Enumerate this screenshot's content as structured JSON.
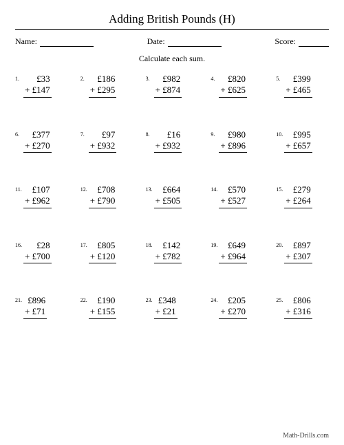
{
  "title": "Adding British Pounds (H)",
  "header": {
    "name_label": "Name:",
    "date_label": "Date:",
    "score_label": "Score:"
  },
  "instruction": "Calculate each sum.",
  "currency": "£",
  "op": "+",
  "problems": [
    {
      "n": "1.",
      "a": "33",
      "b": "147"
    },
    {
      "n": "2.",
      "a": "186",
      "b": "295"
    },
    {
      "n": "3.",
      "a": "982",
      "b": "874"
    },
    {
      "n": "4.",
      "a": "820",
      "b": "625"
    },
    {
      "n": "5.",
      "a": "399",
      "b": "465"
    },
    {
      "n": "6.",
      "a": "377",
      "b": "270"
    },
    {
      "n": "7.",
      "a": "97",
      "b": "932"
    },
    {
      "n": "8.",
      "a": "16",
      "b": "932"
    },
    {
      "n": "9.",
      "a": "980",
      "b": "896"
    },
    {
      "n": "10.",
      "a": "995",
      "b": "657"
    },
    {
      "n": "11.",
      "a": "107",
      "b": "962"
    },
    {
      "n": "12.",
      "a": "708",
      "b": "790"
    },
    {
      "n": "13.",
      "a": "664",
      "b": "505"
    },
    {
      "n": "14.",
      "a": "570",
      "b": "527"
    },
    {
      "n": "15.",
      "a": "279",
      "b": "264"
    },
    {
      "n": "16.",
      "a": "28",
      "b": "700"
    },
    {
      "n": "17.",
      "a": "805",
      "b": "120"
    },
    {
      "n": "18.",
      "a": "142",
      "b": "782"
    },
    {
      "n": "19.",
      "a": "649",
      "b": "964"
    },
    {
      "n": "20.",
      "a": "897",
      "b": "307"
    },
    {
      "n": "21.",
      "a": "896",
      "b": "71"
    },
    {
      "n": "22.",
      "a": "190",
      "b": "155"
    },
    {
      "n": "23.",
      "a": "348",
      "b": "21"
    },
    {
      "n": "24.",
      "a": "205",
      "b": "270"
    },
    {
      "n": "25.",
      "a": "806",
      "b": "316"
    }
  ],
  "footer": "Math-Drills.com",
  "style": {
    "page_bg": "#ffffff",
    "text_color": "#000000",
    "title_fontsize": 17,
    "body_fontsize": 12,
    "problem_fontsize": 13,
    "numlabel_fontsize": 8,
    "footer_fontsize": 10,
    "footer_color": "#444444",
    "name_line_w": 78,
    "date_line_w": 78,
    "score_line_w": 44
  }
}
